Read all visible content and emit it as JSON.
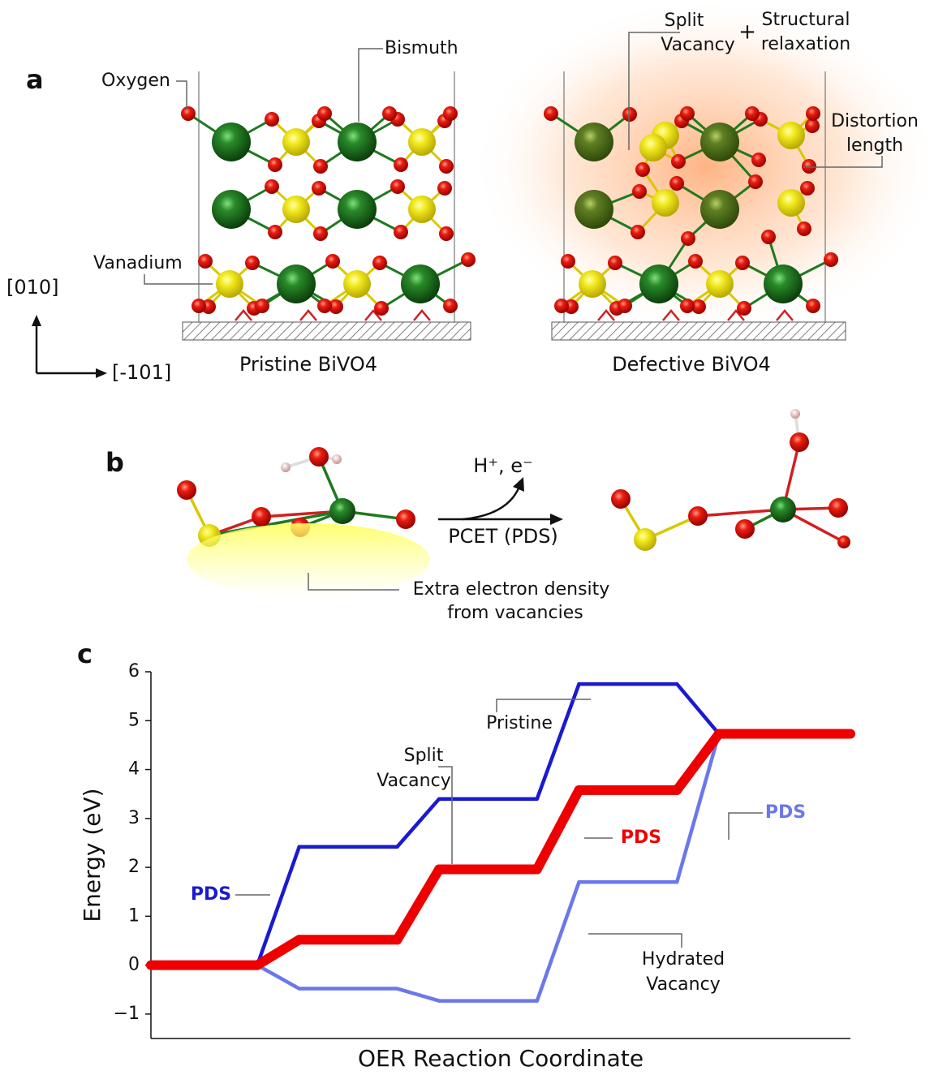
{
  "panel_a": {
    "label": "a",
    "oxygen": "Oxygen",
    "bismuth": "Bismuth",
    "vanadium": "Vanadium",
    "axis_up": "[010]",
    "axis_right": "[-101]",
    "pristine": "Pristine BiVO4",
    "defective": "Defective BiVO4",
    "split_vacancy": [
      "Split",
      "Vacancy"
    ],
    "plus": "+",
    "structural_relaxation": [
      "Structural",
      "relaxation"
    ],
    "distortion_length": [
      "Distortion",
      "length"
    ]
  },
  "panel_b": {
    "label": "b",
    "products": "H⁺, e⁻",
    "pcet": "PCET (PDS)",
    "electron_density": [
      "Extra electron density",
      "from vacancies"
    ]
  },
  "chart_data": {
    "type": "step",
    "panel_label": "c",
    "ylabel": "Energy (eV)",
    "xlabel": "OER Reaction Coordinate",
    "categories": [
      null,
      null,
      null,
      null,
      null
    ],
    "series": [
      {
        "name": "Pristine",
        "color": "#1a1ad0",
        "values": [
          0,
          2.42,
          3.4,
          5.75,
          4.73
        ]
      },
      {
        "name": "Hydrated Vacancy",
        "color": "#6a78ea",
        "values": [
          0,
          -0.48,
          -0.73,
          1.7,
          4.73
        ]
      },
      {
        "name": "Split Vacancy",
        "color": "#ee0000",
        "values": [
          0,
          0.52,
          1.96,
          3.58,
          4.73
        ]
      }
    ],
    "annotations": [
      {
        "text": [
          "Pristine"
        ]
      },
      {
        "text": [
          "Split",
          "Vacancy"
        ]
      },
      {
        "text": [
          "Hydrated",
          "Vacancy"
        ]
      },
      {
        "text": [
          "PDS"
        ],
        "color": "#1a1ad0"
      },
      {
        "text": [
          "PDS"
        ],
        "color": "#ee0000"
      },
      {
        "text": [
          "PDS"
        ],
        "color": "#6a78ea"
      }
    ],
    "ylim": [
      -1.5,
      6
    ],
    "yticks": [
      {
        "value": -1,
        "label": "−1"
      },
      0,
      1,
      2,
      3,
      4,
      5,
      6
    ]
  }
}
